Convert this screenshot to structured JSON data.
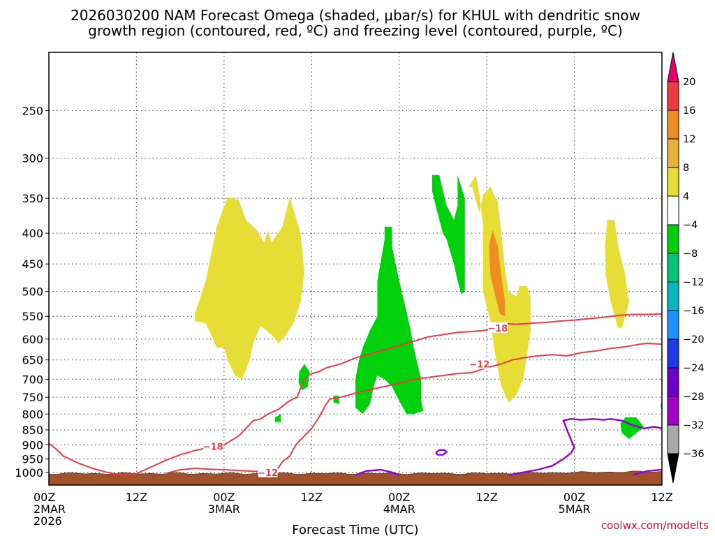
{
  "chart_data": {
    "type": "heatmap",
    "title_lines": [
      "2026030200 NAM Forecast Omega (shaded, μbar/s) for KHUL with dendritic snow",
      "growth region (contoured, red, ºC) and freezing level (contoured, purple, ºC)"
    ],
    "xlabel": "Forecast Time (UTC)",
    "credit": "coolwx.com/modelts",
    "x_range_hours": [
      0,
      84
    ],
    "x_ticks": [
      {
        "hour": 0,
        "lines": [
          "00Z",
          "2MAR",
          "2026"
        ]
      },
      {
        "hour": 12,
        "lines": [
          "12Z"
        ]
      },
      {
        "hour": 24,
        "lines": [
          "00Z",
          "3MAR"
        ]
      },
      {
        "hour": 36,
        "lines": [
          "12Z"
        ]
      },
      {
        "hour": 48,
        "lines": [
          "00Z",
          "4MAR"
        ]
      },
      {
        "hour": 60,
        "lines": [
          "12Z"
        ]
      },
      {
        "hour": 72,
        "lines": [
          "00Z",
          "5MAR"
        ]
      },
      {
        "hour": 84,
        "lines": [
          "12Z"
        ]
      }
    ],
    "y_scale": "log-pressure",
    "y_range_hpa": [
      1050,
      200
    ],
    "y_ticks": [
      "250",
      "300",
      "350",
      "400",
      "450",
      "500",
      "550",
      "600",
      "650",
      "700",
      "750",
      "800",
      "850",
      "900",
      "950",
      "1000"
    ],
    "grid": true,
    "colorbar": {
      "labels": [
        "20",
        "16",
        "12",
        "8",
        "4",
        "−4",
        "−8",
        "−12",
        "−16",
        "−20",
        "−24",
        "−28",
        "−32",
        "−36"
      ],
      "colors": [
        "#e8006e",
        "#ee3a43",
        "#ee8d22",
        "#e3b33c",
        "#e6dd37",
        "#ffffff",
        "#00d10c",
        "#00c27f",
        "#00b8c2",
        "#1f8fff",
        "#1f38e8",
        "#6a00ca",
        "#a000c8",
        "#a9a9a9",
        "#000000"
      ]
    },
    "omega_regions": [
      {
        "color": "#e6dd37",
        "points": [
          [
            20,
            545
          ],
          [
            21.5,
            480
          ],
          [
            23,
            390
          ],
          [
            24.5,
            348
          ],
          [
            26,
            352
          ],
          [
            27,
            380
          ],
          [
            28.5,
            395
          ],
          [
            29.5,
            415
          ],
          [
            30,
            395
          ],
          [
            30.5,
            415
          ],
          [
            31.5,
            398
          ],
          [
            32,
            390
          ],
          [
            33,
            348
          ],
          [
            34.5,
            400
          ],
          [
            35,
            465
          ],
          [
            34.5,
            520
          ],
          [
            33.5,
            565
          ],
          [
            32.5,
            590
          ],
          [
            31.5,
            610
          ],
          [
            30.5,
            590
          ],
          [
            29,
            570
          ],
          [
            28,
            610
          ],
          [
            27.5,
            650
          ],
          [
            26.5,
            700
          ],
          [
            25.5,
            690
          ],
          [
            24.5,
            650
          ],
          [
            24,
            620
          ],
          [
            23,
            620
          ],
          [
            22.5,
            600
          ],
          [
            21.5,
            565
          ],
          [
            20,
            560
          ]
        ]
      },
      {
        "color": "#e6dd37",
        "points": [
          [
            57.5,
            335
          ],
          [
            58.5,
            320
          ],
          [
            59,
            345
          ],
          [
            59.5,
            390
          ],
          [
            59.5,
            500
          ],
          [
            60,
            530
          ],
          [
            60.5,
            560
          ],
          [
            61,
            620
          ],
          [
            61.5,
            670
          ],
          [
            62,
            720
          ],
          [
            63,
            765
          ],
          [
            64,
            745
          ],
          [
            65,
            700
          ],
          [
            65.5,
            640
          ],
          [
            66,
            580
          ],
          [
            66,
            510
          ],
          [
            65.5,
            490
          ],
          [
            64.5,
            490
          ],
          [
            64,
            510
          ],
          [
            63,
            500
          ],
          [
            62.5,
            460
          ],
          [
            62,
            400
          ],
          [
            61.5,
            355
          ],
          [
            60.5,
            335
          ],
          [
            59.5,
            345
          ],
          [
            59,
            370
          ],
          [
            58,
            335
          ]
        ]
      },
      {
        "color": "#ee8d22",
        "points": [
          [
            60.3,
            420
          ],
          [
            60.8,
            395
          ],
          [
            61.5,
            420
          ],
          [
            62,
            470
          ],
          [
            62.5,
            520
          ],
          [
            62.5,
            550
          ],
          [
            61.8,
            545
          ],
          [
            61.2,
            510
          ],
          [
            60.5,
            470
          ]
        ]
      },
      {
        "color": "#e6dd37",
        "points": [
          [
            76.5,
            380
          ],
          [
            77.5,
            380
          ],
          [
            78,
            420
          ],
          [
            79,
            470
          ],
          [
            79.5,
            520
          ],
          [
            79,
            550
          ],
          [
            78.5,
            575
          ],
          [
            78,
            575
          ],
          [
            77.5,
            550
          ],
          [
            77,
            520
          ],
          [
            76.3,
            470
          ],
          [
            76.2,
            420
          ]
        ]
      },
      {
        "color": "#00d10c",
        "points": [
          [
            43,
            620
          ],
          [
            44,
            580
          ],
          [
            45,
            550
          ],
          [
            45,
            480
          ],
          [
            46,
            410
          ],
          [
            46,
            390
          ],
          [
            47,
            390
          ],
          [
            47,
            420
          ],
          [
            48,
            480
          ],
          [
            49,
            540
          ],
          [
            49.5,
            575
          ],
          [
            50,
            620
          ],
          [
            50.5,
            660
          ],
          [
            51,
            700
          ],
          [
            51,
            760
          ],
          [
            51.3,
            790
          ],
          [
            50,
            800
          ],
          [
            49,
            800
          ],
          [
            48,
            760
          ],
          [
            47.5,
            740
          ],
          [
            47,
            720
          ],
          [
            46,
            700
          ],
          [
            45,
            690
          ],
          [
            44.5,
            720
          ],
          [
            44,
            770
          ],
          [
            43,
            800
          ],
          [
            42,
            780
          ],
          [
            42,
            700
          ],
          [
            42.5,
            650
          ]
        ]
      },
      {
        "color": "#00d10c",
        "points": [
          [
            52.5,
            320
          ],
          [
            53.5,
            320
          ],
          [
            54,
            340
          ],
          [
            54.5,
            360
          ],
          [
            55.5,
            380
          ],
          [
            56,
            360
          ],
          [
            56,
            320
          ],
          [
            57,
            350
          ],
          [
            57,
            400
          ],
          [
            57,
            500
          ],
          [
            56.5,
            505
          ],
          [
            56,
            480
          ],
          [
            55.5,
            450
          ],
          [
            55,
            430
          ],
          [
            54.5,
            410
          ],
          [
            54,
            400
          ],
          [
            53.5,
            380
          ],
          [
            53,
            360
          ],
          [
            52.5,
            340
          ]
        ]
      },
      {
        "color": "#00d10c",
        "points": [
          [
            34.3,
            680
          ],
          [
            35,
            660
          ],
          [
            35.7,
            680
          ],
          [
            35.5,
            720
          ],
          [
            34.7,
            730
          ],
          [
            34.2,
            710
          ]
        ]
      },
      {
        "color": "#00d10c",
        "points": [
          [
            39,
            745
          ],
          [
            39.7,
            745
          ],
          [
            39.8,
            770
          ],
          [
            39,
            765
          ]
        ]
      },
      {
        "color": "#00d10c",
        "points": [
          [
            31,
            810
          ],
          [
            31.8,
            800
          ],
          [
            31.8,
            825
          ],
          [
            31,
            825
          ]
        ]
      },
      {
        "color": "#00d10c",
        "points": [
          [
            78.3,
            830
          ],
          [
            79,
            810
          ],
          [
            80.5,
            810
          ],
          [
            81.5,
            840
          ],
          [
            80.5,
            860
          ],
          [
            79.5,
            880
          ],
          [
            78.5,
            860
          ]
        ]
      },
      {
        "color": "#00d10c",
        "points": [
          [
            83.8,
            775
          ],
          [
            84,
            760
          ],
          [
            84,
            790
          ]
        ]
      }
    ],
    "dgz_contours": [
      {
        "label": "−18",
        "label_at": [
          22.5,
          905
        ],
        "points": [
          [
            0,
            895
          ],
          [
            1,
            915
          ],
          [
            2,
            940
          ],
          [
            4,
            965
          ],
          [
            6,
            985
          ],
          [
            8,
            1000
          ],
          [
            10,
            1010
          ],
          [
            12,
            1005
          ],
          [
            14,
            980
          ],
          [
            16,
            955
          ],
          [
            18,
            935
          ],
          [
            20,
            920
          ],
          [
            22,
            908
          ],
          [
            24,
            900
          ],
          [
            26,
            870
          ],
          [
            27,
            845
          ],
          [
            28,
            820
          ],
          [
            29,
            815
          ],
          [
            30,
            800
          ],
          [
            31,
            790
          ],
          [
            31.5,
            785
          ],
          [
            33,
            760
          ],
          [
            34,
            750
          ],
          [
            35,
            700
          ],
          [
            35.5,
            690
          ],
          [
            36,
            685
          ],
          [
            37,
            680
          ],
          [
            38,
            670
          ],
          [
            40,
            660
          ],
          [
            42,
            645
          ],
          [
            44,
            635
          ],
          [
            46,
            625
          ],
          [
            48,
            615
          ],
          [
            50,
            605
          ],
          [
            52,
            595
          ],
          [
            54,
            590
          ],
          [
            56,
            585
          ],
          [
            58,
            583
          ],
          [
            60,
            580
          ],
          [
            61,
            570
          ],
          [
            62,
            565
          ],
          [
            64,
            567
          ],
          [
            66,
            565
          ],
          [
            68,
            563
          ],
          [
            70,
            560
          ],
          [
            72,
            558
          ],
          [
            74,
            555
          ],
          [
            76,
            552
          ],
          [
            78,
            548
          ],
          [
            80,
            546
          ],
          [
            82,
            546
          ],
          [
            84,
            545
          ]
        ]
      },
      {
        "label": "−12",
        "label_at": [
          30,
          1000
        ],
        "points": [
          [
            16,
            1005
          ],
          [
            18,
            990
          ],
          [
            20,
            985
          ],
          [
            22,
            988
          ],
          [
            24,
            990
          ],
          [
            26,
            993
          ],
          [
            28,
            996
          ],
          [
            30,
            997
          ],
          [
            31,
            992
          ],
          [
            31.5,
            980
          ],
          [
            32,
            960
          ],
          [
            33,
            940
          ],
          [
            33.5,
            915
          ],
          [
            34,
            895
          ],
          [
            35,
            870
          ],
          [
            36,
            845
          ],
          [
            37,
            810
          ],
          [
            37.5,
            790
          ],
          [
            38,
            770
          ],
          [
            38.5,
            755
          ],
          [
            40,
            750
          ],
          [
            42,
            738
          ],
          [
            44,
            728
          ],
          [
            46,
            720
          ],
          [
            48,
            710
          ],
          [
            50,
            700
          ],
          [
            52,
            695
          ],
          [
            54,
            690
          ],
          [
            56,
            685
          ],
          [
            58,
            682
          ],
          [
            60,
            670
          ],
          [
            62,
            660
          ],
          [
            63.5,
            650
          ],
          [
            65,
            645
          ],
          [
            67,
            640
          ],
          [
            69,
            637
          ],
          [
            71,
            640
          ],
          [
            73,
            632
          ],
          [
            75,
            628
          ],
          [
            77,
            622
          ],
          [
            79,
            618
          ],
          [
            81,
            612
          ],
          [
            82,
            610
          ],
          [
            84,
            612
          ]
        ]
      }
    ],
    "freezing_contours": [
      {
        "points": [
          [
            42,
            1010
          ],
          [
            43.5,
            995
          ],
          [
            45.5,
            990
          ],
          [
            47,
            1000
          ],
          [
            48,
            1010
          ]
        ]
      },
      {
        "points": [
          [
            53,
            928
          ],
          [
            53.5,
            918
          ],
          [
            54.2,
            918
          ],
          [
            54.5,
            925
          ],
          [
            54,
            935
          ],
          [
            53.3,
            935
          ],
          [
            53,
            928
          ]
        ]
      },
      {
        "points": [
          [
            63,
            1010
          ],
          [
            65,
            1000
          ],
          [
            67,
            990
          ],
          [
            69,
            975
          ],
          [
            70.5,
            950
          ],
          [
            71.5,
            930
          ],
          [
            72,
            910
          ],
          [
            71.5,
            880
          ],
          [
            71,
            850
          ],
          [
            70.5,
            820
          ],
          [
            71.5,
            815
          ],
          [
            73,
            818
          ],
          [
            74.5,
            815
          ],
          [
            76,
            818
          ],
          [
            77,
            815
          ],
          [
            78.5,
            820
          ],
          [
            80,
            835
          ],
          [
            81.5,
            845
          ],
          [
            83,
            840
          ],
          [
            84,
            845
          ]
        ]
      },
      {
        "points": [
          [
            80,
            1010
          ],
          [
            82,
            995
          ],
          [
            84,
            990
          ]
        ]
      }
    ]
  }
}
